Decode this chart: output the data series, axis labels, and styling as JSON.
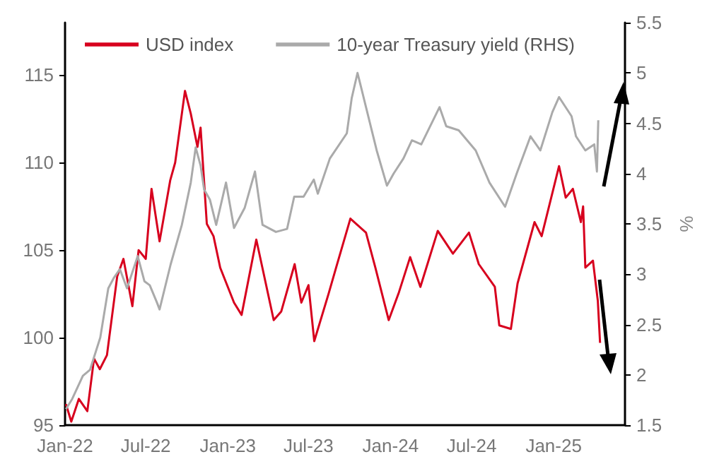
{
  "chart_data": {
    "type": "line",
    "y2label": "%",
    "legend": "top left",
    "grid": false,
    "marker": "none",
    "xlim": [
      "2022-01-01",
      "2025-06-10"
    ],
    "xticks": [
      {
        "value": "2022-01-01",
        "label": "Jan-22"
      },
      {
        "value": "2022-07-01",
        "label": "Jul-22"
      },
      {
        "value": "2023-01-01",
        "label": "Jan-23"
      },
      {
        "value": "2023-07-01",
        "label": "Jul-23"
      },
      {
        "value": "2024-01-01",
        "label": "Jan-24"
      },
      {
        "value": "2024-07-01",
        "label": "Jul-24"
      },
      {
        "value": "2025-01-01",
        "label": "Jan-25"
      }
    ],
    "ylim": [
      95,
      118
    ],
    "yticks": [
      95,
      100,
      105,
      110,
      115
    ],
    "y2lim": [
      1.5,
      5.5
    ],
    "y2ticks": [
      1.5,
      2,
      2.5,
      3,
      3.5,
      4,
      4.5,
      5,
      5.5
    ],
    "series": [
      {
        "name": "USD index",
        "color": "#d7001e",
        "x": [
          "2022-01-03",
          "2022-01-15",
          "2022-02-01",
          "2022-02-20",
          "2022-03-07",
          "2022-03-20",
          "2022-04-05",
          "2022-04-28",
          "2022-05-12",
          "2022-06-01",
          "2022-06-15",
          "2022-07-01",
          "2022-07-14",
          "2022-08-01",
          "2022-08-25",
          "2022-09-05",
          "2022-09-27",
          "2022-10-10",
          "2022-10-25",
          "2022-11-01",
          "2022-11-15",
          "2022-11-30",
          "2022-12-15",
          "2023-01-15",
          "2023-02-01",
          "2023-03-06",
          "2023-04-14",
          "2023-05-01",
          "2023-05-31",
          "2023-06-15",
          "2023-07-01",
          "2023-07-14",
          "2023-08-15",
          "2023-09-01",
          "2023-10-03",
          "2023-11-07",
          "2023-11-28",
          "2023-12-28",
          "2024-01-20",
          "2024-02-14",
          "2024-03-08",
          "2024-04-16",
          "2024-05-20",
          "2024-06-25",
          "2024-07-17",
          "2024-08-22",
          "2024-09-01",
          "2024-09-27",
          "2024-10-12",
          "2024-11-19",
          "2024-12-05",
          "2025-01-13",
          "2025-01-28",
          "2025-02-13",
          "2025-03-03",
          "2025-03-08",
          "2025-03-13",
          "2025-03-30",
          "2025-04-10",
          "2025-04-15"
        ],
        "values": [
          96.2,
          95.2,
          96.5,
          95.8,
          98.8,
          98.2,
          99.0,
          103.5,
          104.5,
          101.8,
          105.0,
          104.5,
          108.5,
          105.5,
          109.0,
          110.0,
          114.1,
          112.8,
          110.9,
          112.0,
          106.5,
          105.8,
          104.0,
          102.0,
          101.3,
          105.6,
          101.0,
          101.5,
          104.2,
          102.0,
          103.0,
          99.8,
          102.5,
          104.0,
          106.8,
          106.0,
          104.0,
          101.0,
          102.6,
          104.6,
          102.9,
          106.1,
          104.8,
          106.0,
          104.2,
          102.9,
          100.7,
          100.5,
          103.1,
          106.6,
          105.8,
          109.8,
          108.0,
          108.5,
          106.6,
          107.5,
          104.0,
          104.4,
          102.1,
          99.7
        ]
      },
      {
        "name": "10-year Treasury yield (RHS)",
        "color": "#aaaaaa",
        "axis": "y2",
        "x": [
          "2022-01-03",
          "2022-01-17",
          "2022-02-10",
          "2022-02-26",
          "2022-03-21",
          "2022-04-08",
          "2022-04-20",
          "2022-05-04",
          "2022-05-20",
          "2022-06-13",
          "2022-06-28",
          "2022-07-10",
          "2022-07-26",
          "2022-08-01",
          "2022-08-26",
          "2022-09-20",
          "2022-10-10",
          "2022-10-21",
          "2022-11-01",
          "2022-11-09",
          "2022-11-22",
          "2022-12-06",
          "2022-12-28",
          "2023-01-15",
          "2023-02-08",
          "2023-03-03",
          "2023-03-20",
          "2023-04-19",
          "2023-05-14",
          "2023-05-30",
          "2023-06-20",
          "2023-07-13",
          "2023-07-22",
          "2023-08-18",
          "2023-09-25",
          "2023-10-06",
          "2023-10-19",
          "2023-11-07",
          "2023-12-01",
          "2023-12-24",
          "2024-01-08",
          "2024-01-30",
          "2024-02-18",
          "2024-03-10",
          "2024-04-20",
          "2024-05-05",
          "2024-06-02",
          "2024-07-10",
          "2024-08-10",
          "2024-09-14",
          "2024-10-10",
          "2024-11-10",
          "2024-12-02",
          "2024-12-29",
          "2025-01-13",
          "2025-02-10",
          "2025-02-20",
          "2025-03-13",
          "2025-04-02",
          "2025-04-08",
          "2025-04-11"
        ],
        "values": [
          1.66,
          1.76,
          1.99,
          2.05,
          2.37,
          2.86,
          2.96,
          3.05,
          2.86,
          3.18,
          2.93,
          2.89,
          2.72,
          2.65,
          3.1,
          3.49,
          3.91,
          4.26,
          4.08,
          3.84,
          3.74,
          3.49,
          3.91,
          3.46,
          3.66,
          4.02,
          3.49,
          3.42,
          3.45,
          3.77,
          3.77,
          3.94,
          3.8,
          4.15,
          4.4,
          4.75,
          5.0,
          4.66,
          4.23,
          3.88,
          4.0,
          4.15,
          4.33,
          4.29,
          4.66,
          4.47,
          4.43,
          4.23,
          3.91,
          3.67,
          4.0,
          4.37,
          4.23,
          4.61,
          4.76,
          4.57,
          4.37,
          4.23,
          4.29,
          4.02,
          4.53
        ]
      }
    ]
  }
}
